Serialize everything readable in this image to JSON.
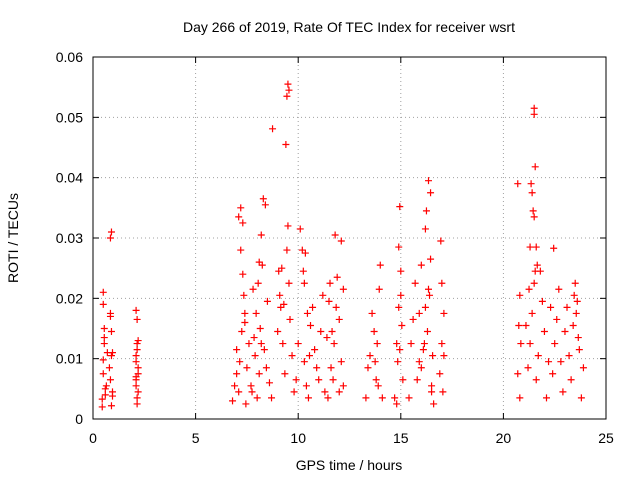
{
  "chart_data": {
    "type": "scatter",
    "title": "Day 266 of 2019, Rate Of TEC Index for receiver wsrt",
    "xlabel": "GPS time / hours",
    "ylabel": "ROTI / TECUs",
    "xlim": [
      0,
      25
    ],
    "ylim": [
      0,
      0.06
    ],
    "xticks": [
      0,
      5,
      10,
      15,
      20,
      25
    ],
    "xtick_labels": [
      "0",
      "5",
      "10",
      "15",
      "20",
      "25"
    ],
    "yticks": [
      0,
      0.01,
      0.02,
      0.03,
      0.04,
      0.05,
      0.06
    ],
    "ytick_labels": [
      "0",
      "0.01",
      "0.02",
      "0.03",
      "0.04",
      "0.05",
      "0.06"
    ],
    "grid": true,
    "marker": "plus",
    "color": "#ff0000",
    "series": [
      {
        "name": "ROTI",
        "x": [
          0.45,
          0.5,
          0.55,
          0.5,
          0.6,
          0.45,
          0.55,
          0.5,
          0.6,
          0.65,
          0.7,
          0.5,
          0.55,
          0.85,
          0.9,
          0.85,
          0.9,
          0.95,
          0.85,
          0.9,
          0.8,
          0.95,
          0.85,
          0.9,
          0.95,
          2.1,
          2.15,
          2.1,
          2.2,
          2.1,
          2.15,
          2.2,
          2.1,
          2.15,
          2.2,
          2.1,
          2.15,
          2.2,
          2.1,
          2.15,
          6.8,
          6.9,
          7.0,
          7.1,
          7.2,
          7.3,
          7.4,
          7.5,
          7.1,
          7.2,
          7.3,
          7.0,
          7.25,
          7.35,
          7.45,
          7.15,
          7.4,
          7.6,
          7.7,
          7.8,
          7.9,
          8.0,
          8.1,
          8.2,
          8.3,
          8.4,
          8.5,
          8.2,
          8.1,
          8.15,
          8.25,
          7.75,
          7.85,
          7.95,
          8.05,
          8.35,
          8.45,
          8.6,
          8.7,
          8.75,
          9.0,
          9.1,
          9.2,
          9.3,
          9.4,
          9.45,
          9.5,
          9.55,
          9.5,
          9.45,
          9.55,
          9.6,
          9.7,
          9.8,
          9.35,
          9.25,
          9.15,
          9.05,
          9.9,
          10.0,
          10.1,
          10.2,
          10.3,
          10.4,
          10.5,
          10.6,
          10.7,
          10.8,
          10.9,
          11.0,
          11.1,
          11.2,
          10.3,
          10.35,
          10.25,
          10.45,
          10.55,
          11.3,
          11.4,
          11.5,
          11.6,
          11.7,
          11.8,
          11.9,
          12.0,
          12.1,
          12.2,
          11.75,
          11.85,
          11.45,
          11.55,
          11.65,
          12.0,
          12.1,
          12.2,
          13.3,
          13.4,
          13.5,
          13.6,
          13.7,
          13.8,
          13.9,
          14.0,
          13.95,
          13.85,
          13.75,
          14.1,
          14.7,
          14.8,
          14.9,
          15.0,
          15.1,
          14.85,
          14.95,
          15.05,
          14.9,
          15.0,
          14.8,
          14.95,
          15.4,
          15.5,
          15.6,
          15.7,
          15.8,
          15.9,
          16.0,
          16.1,
          16.2,
          16.3,
          16.4,
          16.5,
          16.6,
          16.2,
          16.25,
          16.35,
          16.45,
          16.0,
          15.9,
          16.15,
          16.35,
          16.45,
          16.5,
          16.55,
          16.9,
          17.0,
          17.1,
          17.0,
          16.95,
          17.05,
          17.1,
          20.7,
          20.8,
          20.75,
          20.85,
          20.7,
          20.8,
          21.1,
          21.2,
          21.3,
          21.4,
          21.5,
          21.6,
          21.7,
          21.8,
          21.9,
          22.0,
          22.1,
          22.2,
          21.35,
          21.4,
          21.45,
          21.5,
          21.55,
          21.5,
          21.5,
          21.55,
          21.6,
          21.65,
          21.3,
          21.25,
          22.3,
          22.4,
          22.5,
          22.6,
          22.7,
          22.8,
          22.9,
          23.0,
          23.1,
          23.2,
          23.3,
          23.4,
          23.5,
          23.6,
          23.7,
          23.8,
          23.9,
          22.45,
          23.45,
          23.55,
          23.65
        ],
        "y": [
          0.0033,
          0.021,
          0.0125,
          0.0075,
          0.005,
          0.002,
          0.0135,
          0.0098,
          0.004,
          0.0055,
          0.011,
          0.019,
          0.015,
          0.017,
          0.031,
          0.03,
          0.0145,
          0.011,
          0.0065,
          0.0022,
          0.0085,
          0.0038,
          0.0175,
          0.0105,
          0.0045,
          0.018,
          0.0115,
          0.0095,
          0.0075,
          0.0055,
          0.0035,
          0.013,
          0.0065,
          0.0025,
          0.0085,
          0.0105,
          0.0125,
          0.0045,
          0.007,
          0.0165,
          0.003,
          0.0055,
          0.0115,
          0.0335,
          0.028,
          0.024,
          0.0175,
          0.0085,
          0.0045,
          0.035,
          0.0325,
          0.0075,
          0.0145,
          0.0205,
          0.0025,
          0.0095,
          0.016,
          0.0125,
          0.0055,
          0.0215,
          0.0105,
          0.0035,
          0.026,
          0.0305,
          0.0365,
          0.0355,
          0.0195,
          0.0125,
          0.0075,
          0.015,
          0.0255,
          0.0045,
          0.0135,
          0.0175,
          0.0225,
          0.0115,
          0.0085,
          0.006,
          0.0035,
          0.0481,
          0.0145,
          0.0205,
          0.025,
          0.019,
          0.0455,
          0.0535,
          0.0555,
          0.0545,
          0.032,
          0.028,
          0.0225,
          0.0165,
          0.0105,
          0.0045,
          0.0075,
          0.0125,
          0.0185,
          0.0245,
          0.0065,
          0.0125,
          0.0315,
          0.028,
          0.0095,
          0.0055,
          0.0035,
          0.0155,
          0.0185,
          0.0115,
          0.0085,
          0.0065,
          0.0145,
          0.0205,
          0.0225,
          0.0275,
          0.0245,
          0.0175,
          0.0105,
          0.0045,
          0.0135,
          0.0195,
          0.0085,
          0.0065,
          0.0305,
          0.0235,
          0.0165,
          0.0095,
          0.0055,
          0.0125,
          0.0185,
          0.0035,
          0.0225,
          0.0145,
          0.0045,
          0.0295,
          0.0215,
          0.0035,
          0.0085,
          0.0105,
          0.0175,
          0.0145,
          0.0065,
          0.0055,
          0.0255,
          0.0215,
          0.0125,
          0.0095,
          0.0035,
          0.0035,
          0.0125,
          0.0185,
          0.0245,
          0.0065,
          0.0095,
          0.0352,
          0.0155,
          0.0285,
          0.0205,
          0.0025,
          0.0115,
          0.0035,
          0.0125,
          0.0165,
          0.0225,
          0.0065,
          0.0095,
          0.0255,
          0.0115,
          0.0185,
          0.0145,
          0.0205,
          0.0055,
          0.0025,
          0.0315,
          0.0345,
          0.0395,
          0.0375,
          0.0085,
          0.0175,
          0.0125,
          0.0215,
          0.0265,
          0.0045,
          0.0105,
          0.0075,
          0.0125,
          0.0175,
          0.0225,
          0.0295,
          0.0045,
          0.0105,
          0.039,
          0.0205,
          0.0155,
          0.0125,
          0.0075,
          0.0035,
          0.0155,
          0.0085,
          0.0125,
          0.0175,
          0.0225,
          0.0065,
          0.0105,
          0.0245,
          0.0195,
          0.0145,
          0.0035,
          0.0095,
          0.039,
          0.0375,
          0.0345,
          0.0335,
          0.0245,
          0.0515,
          0.0505,
          0.0418,
          0.0285,
          0.0255,
          0.0285,
          0.0215,
          0.0185,
          0.0075,
          0.0125,
          0.0165,
          0.0215,
          0.0095,
          0.0045,
          0.0145,
          0.0185,
          0.0105,
          0.0065,
          0.0155,
          0.0225,
          0.0195,
          0.0115,
          0.0035,
          0.0085,
          0.0283,
          0.0205,
          0.0175,
          0.0135
        ]
      }
    ]
  }
}
